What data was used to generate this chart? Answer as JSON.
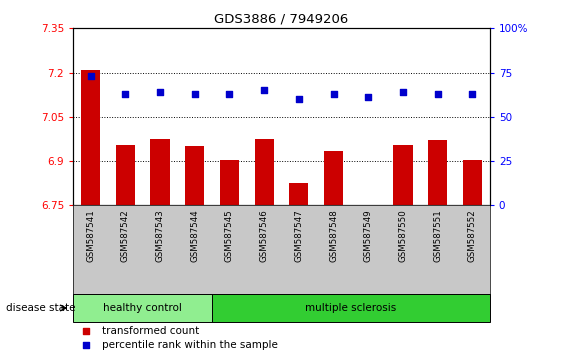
{
  "title": "GDS3886 / 7949206",
  "samples": [
    "GSM587541",
    "GSM587542",
    "GSM587543",
    "GSM587544",
    "GSM587545",
    "GSM587546",
    "GSM587547",
    "GSM587548",
    "GSM587549",
    "GSM587550",
    "GSM587551",
    "GSM587552"
  ],
  "bar_values": [
    7.21,
    6.955,
    6.975,
    6.95,
    6.905,
    6.975,
    6.825,
    6.935,
    6.75,
    6.955,
    6.97,
    6.905
  ],
  "dot_values": [
    73,
    63,
    64,
    63,
    63,
    65,
    60,
    63,
    61,
    64,
    63,
    63
  ],
  "ylim_left": [
    6.75,
    7.35
  ],
  "ylim_right": [
    0,
    100
  ],
  "yticks_left": [
    6.75,
    6.9,
    7.05,
    7.2,
    7.35
  ],
  "ytick_labels_left": [
    "6.75",
    "6.9",
    "7.05",
    "7.2",
    "7.35"
  ],
  "yticks_right": [
    0,
    25,
    50,
    75,
    100
  ],
  "ytick_labels_right": [
    "0",
    "25",
    "50",
    "75",
    "100%"
  ],
  "hlines": [
    6.9,
    7.05,
    7.2
  ],
  "bar_color": "#cc0000",
  "dot_color": "#0000cc",
  "bar_bottom": 6.75,
  "groups": [
    {
      "label": "healthy control",
      "start": 0,
      "end": 4,
      "color": "#90ee90"
    },
    {
      "label": "multiple sclerosis",
      "start": 4,
      "end": 12,
      "color": "#32cd32"
    }
  ],
  "disease_state_label": "disease state",
  "legend_items": [
    {
      "color": "#cc0000",
      "label": "transformed count"
    },
    {
      "color": "#0000cc",
      "label": "percentile rank within the sample"
    }
  ],
  "background_color": "#ffffff",
  "plot_bg_color": "#ffffff",
  "tick_area_bg": "#c8c8c8"
}
